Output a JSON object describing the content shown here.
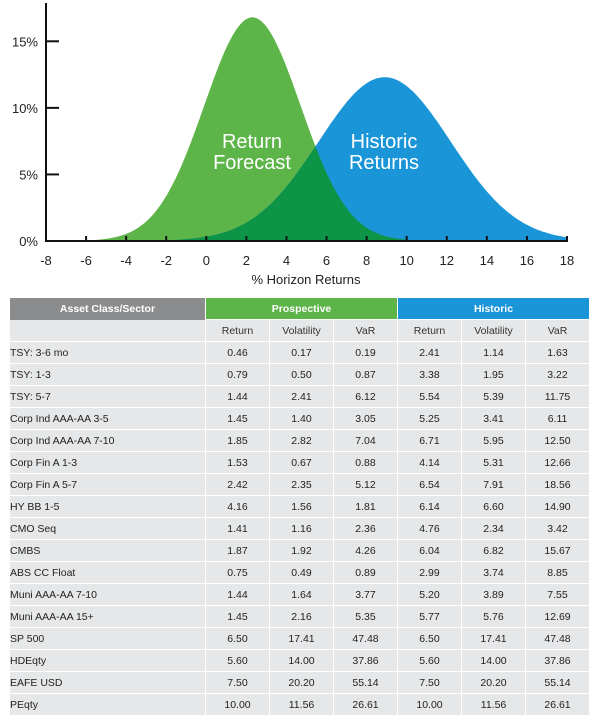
{
  "chart_data": {
    "type": "area",
    "x_ticks": [
      "-8",
      "-6",
      "-4",
      "-2",
      "0",
      "2",
      "4",
      "6",
      "8",
      "10",
      "12",
      "14",
      "16",
      "18"
    ],
    "y_ticks": [
      "0%",
      "5%",
      "10%",
      "15%"
    ],
    "xlabel": "% Horizon Returns",
    "xlim": [
      -8,
      18
    ],
    "ylim": [
      0,
      17.5
    ],
    "series": [
      {
        "name": "Return Forecast",
        "color": "#5db449",
        "peak_x": 2.3,
        "peak_y": 16.8,
        "sd": 2.4
      },
      {
        "name": "Historic Returns",
        "color": "#1a95d8",
        "peak_x": 8.9,
        "peak_y": 12.3,
        "sd": 3.3
      }
    ],
    "labels": [
      {
        "lines": [
          "Return",
          "Forecast"
        ]
      },
      {
        "lines": [
          "Historic",
          "Returns"
        ]
      }
    ],
    "overlap_color": "#0d9447"
  },
  "table": {
    "header": {
      "asset": "Asset Class/Sector",
      "prospective": "Prospective",
      "historic": "Historic"
    },
    "columns": [
      "Return",
      "Volatility",
      "VaR",
      "Return",
      "Volatility",
      "VaR"
    ],
    "rows": [
      {
        "name": "TSY: 3-6 mo",
        "cells": [
          "0.46",
          "0.17",
          "0.19",
          "2.41",
          "1.14",
          "1.63"
        ]
      },
      {
        "name": "TSY: 1-3",
        "cells": [
          "0.79",
          "0.50",
          "0.87",
          "3.38",
          "1.95",
          "3.22"
        ]
      },
      {
        "name": "TSY: 5-7",
        "cells": [
          "1.44",
          "2.41",
          "6.12",
          "5.54",
          "5.39",
          "11.75"
        ]
      },
      {
        "name": "Corp Ind AAA-AA 3-5",
        "cells": [
          "1.45",
          "1.40",
          "3.05",
          "5.25",
          "3.41",
          "6.11"
        ]
      },
      {
        "name": "Corp Ind AAA-AA 7-10",
        "cells": [
          "1.85",
          "2.82",
          "7.04",
          "6.71",
          "5.95",
          "12.50"
        ]
      },
      {
        "name": "Corp Fin A 1-3",
        "cells": [
          "1.53",
          "0.67",
          "0.88",
          "4.14",
          "5.31",
          "12.66"
        ]
      },
      {
        "name": "Corp Fin A 5-7",
        "cells": [
          "2.42",
          "2.35",
          "5.12",
          "6.54",
          "7.91",
          "18.56"
        ]
      },
      {
        "name": "HY BB 1-5",
        "cells": [
          "4.16",
          "1.56",
          "1.81",
          "6.14",
          "6.60",
          "14.90"
        ]
      },
      {
        "name": "CMO Seq",
        "cells": [
          "1.41",
          "1.16",
          "2.36",
          "4.76",
          "2.34",
          "3.42"
        ]
      },
      {
        "name": "CMBS",
        "cells": [
          "1.87",
          "1.92",
          "4.26",
          "6.04",
          "6.82",
          "15.67"
        ]
      },
      {
        "name": "ABS CC Float",
        "cells": [
          "0.75",
          "0.49",
          "0.89",
          "2.99",
          "3.74",
          "8.85"
        ]
      },
      {
        "name": "Muni AAA-AA 7-10",
        "cells": [
          "1.44",
          "1.64",
          "3.77",
          "5.20",
          "3.89",
          "7.55"
        ]
      },
      {
        "name": "Muni AAA-AA 15+",
        "cells": [
          "1.45",
          "2.16",
          "5.35",
          "5.77",
          "5.76",
          "12.69"
        ]
      },
      {
        "name": "SP 500",
        "cells": [
          "6.50",
          "17.41",
          "47.48",
          "6.50",
          "17.41",
          "47.48"
        ]
      },
      {
        "name": "HDEqty",
        "cells": [
          "5.60",
          "14.00",
          "37.86",
          "5.60",
          "14.00",
          "37.86"
        ]
      },
      {
        "name": "EAFE USD",
        "cells": [
          "7.50",
          "20.20",
          "55.14",
          "7.50",
          "20.20",
          "55.14"
        ]
      },
      {
        "name": "PEqty",
        "cells": [
          "10.00",
          "11.56",
          "26.61",
          "10.00",
          "11.56",
          "26.61"
        ]
      }
    ]
  }
}
